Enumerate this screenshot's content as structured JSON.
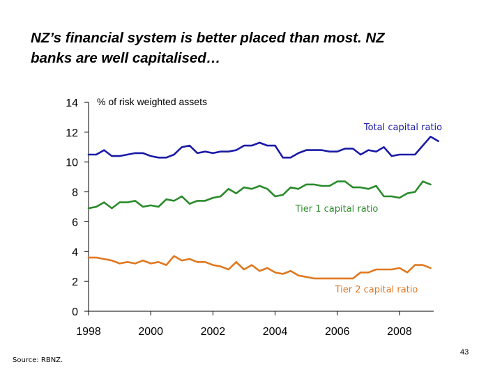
{
  "slide": {
    "title_line1": "NZ’s financial system is better placed than most.  NZ",
    "title_line2": "banks are well capitalised…",
    "source": "Source:  RBNZ.",
    "page_number": "43"
  },
  "chart_data": {
    "type": "line",
    "title": "",
    "ylabel": "% of risk weighted assets",
    "xlabel": "",
    "xlim": [
      1998,
      2009.1
    ],
    "ylim": [
      0,
      14
    ],
    "yticks": [
      0,
      2,
      4,
      6,
      8,
      10,
      12,
      14
    ],
    "xticks": [
      1998,
      2000,
      2002,
      2004,
      2006,
      2008
    ],
    "grid": false,
    "legend": "labels beside series",
    "series": [
      {
        "name": "Total capital ratio",
        "color": "#1a1aa6",
        "points": [
          [
            1998.0,
            10.5
          ],
          [
            1998.25,
            10.5
          ],
          [
            1998.5,
            10.8
          ],
          [
            1998.75,
            10.4
          ],
          [
            1999.0,
            10.4
          ],
          [
            1999.25,
            10.5
          ],
          [
            1999.5,
            10.6
          ],
          [
            1999.75,
            10.6
          ],
          [
            2000.0,
            10.4
          ],
          [
            2000.25,
            10.3
          ],
          [
            2000.5,
            10.3
          ],
          [
            2000.75,
            10.5
          ],
          [
            2001.0,
            11.0
          ],
          [
            2001.25,
            11.1
          ],
          [
            2001.5,
            10.6
          ],
          [
            2001.75,
            10.7
          ],
          [
            2002.0,
            10.6
          ],
          [
            2002.25,
            10.7
          ],
          [
            2002.5,
            10.7
          ],
          [
            2002.75,
            10.8
          ],
          [
            2003.0,
            11.1
          ],
          [
            2003.25,
            11.1
          ],
          [
            2003.5,
            11.3
          ],
          [
            2003.75,
            11.1
          ],
          [
            2004.0,
            11.1
          ],
          [
            2004.25,
            10.3
          ],
          [
            2004.5,
            10.3
          ],
          [
            2004.75,
            10.6
          ],
          [
            2005.0,
            10.8
          ],
          [
            2005.25,
            10.8
          ],
          [
            2005.5,
            10.8
          ],
          [
            2005.75,
            10.7
          ],
          [
            2006.0,
            10.7
          ],
          [
            2006.25,
            10.9
          ],
          [
            2006.5,
            10.9
          ],
          [
            2006.75,
            10.5
          ],
          [
            2007.0,
            10.8
          ],
          [
            2007.25,
            10.7
          ],
          [
            2007.5,
            11.0
          ],
          [
            2007.75,
            10.4
          ],
          [
            2008.0,
            10.5
          ],
          [
            2008.25,
            10.5
          ],
          [
            2008.5,
            10.5
          ],
          [
            2008.75,
            11.1
          ],
          [
            2009.0,
            11.7
          ],
          [
            2009.25,
            11.4
          ]
        ]
      },
      {
        "name": "Tier 1 capital ratio",
        "color": "#2a8a2a",
        "points": [
          [
            1998.0,
            6.9
          ],
          [
            1998.25,
            7.0
          ],
          [
            1998.5,
            7.3
          ],
          [
            1998.75,
            6.9
          ],
          [
            1999.0,
            7.3
          ],
          [
            1999.25,
            7.3
          ],
          [
            1999.5,
            7.4
          ],
          [
            1999.75,
            7.0
          ],
          [
            2000.0,
            7.1
          ],
          [
            2000.25,
            7.0
          ],
          [
            2000.5,
            7.5
          ],
          [
            2000.75,
            7.4
          ],
          [
            2001.0,
            7.7
          ],
          [
            2001.25,
            7.2
          ],
          [
            2001.5,
            7.4
          ],
          [
            2001.75,
            7.4
          ],
          [
            2002.0,
            7.6
          ],
          [
            2002.25,
            7.7
          ],
          [
            2002.5,
            8.2
          ],
          [
            2002.75,
            7.9
          ],
          [
            2003.0,
            8.3
          ],
          [
            2003.25,
            8.2
          ],
          [
            2003.5,
            8.4
          ],
          [
            2003.75,
            8.2
          ],
          [
            2004.0,
            7.7
          ],
          [
            2004.25,
            7.8
          ],
          [
            2004.5,
            8.3
          ],
          [
            2004.75,
            8.2
          ],
          [
            2005.0,
            8.5
          ],
          [
            2005.25,
            8.5
          ],
          [
            2005.5,
            8.4
          ],
          [
            2005.75,
            8.4
          ],
          [
            2006.0,
            8.7
          ],
          [
            2006.25,
            8.7
          ],
          [
            2006.5,
            8.3
          ],
          [
            2006.75,
            8.3
          ],
          [
            2007.0,
            8.2
          ],
          [
            2007.25,
            8.4
          ],
          [
            2007.5,
            7.7
          ],
          [
            2007.75,
            7.7
          ],
          [
            2008.0,
            7.6
          ],
          [
            2008.25,
            7.9
          ],
          [
            2008.5,
            8.0
          ],
          [
            2008.75,
            8.7
          ],
          [
            2009.0,
            8.5
          ]
        ]
      },
      {
        "name": "Tier 2 capital ratio",
        "color": "#e07820",
        "points": [
          [
            1998.0,
            3.6
          ],
          [
            1998.25,
            3.6
          ],
          [
            1998.5,
            3.5
          ],
          [
            1998.75,
            3.4
          ],
          [
            1999.0,
            3.2
          ],
          [
            1999.25,
            3.3
          ],
          [
            1999.5,
            3.2
          ],
          [
            1999.75,
            3.4
          ],
          [
            2000.0,
            3.2
          ],
          [
            2000.25,
            3.3
          ],
          [
            2000.5,
            3.1
          ],
          [
            2000.75,
            3.7
          ],
          [
            2001.0,
            3.4
          ],
          [
            2001.25,
            3.5
          ],
          [
            2001.5,
            3.3
          ],
          [
            2001.75,
            3.3
          ],
          [
            2002.0,
            3.1
          ],
          [
            2002.25,
            3.0
          ],
          [
            2002.5,
            2.8
          ],
          [
            2002.75,
            3.3
          ],
          [
            2003.0,
            2.8
          ],
          [
            2003.25,
            3.1
          ],
          [
            2003.5,
            2.7
          ],
          [
            2003.75,
            2.9
          ],
          [
            2004.0,
            2.6
          ],
          [
            2004.25,
            2.5
          ],
          [
            2004.5,
            2.7
          ],
          [
            2004.75,
            2.4
          ],
          [
            2005.0,
            2.3
          ],
          [
            2005.25,
            2.2
          ],
          [
            2005.5,
            2.2
          ],
          [
            2005.75,
            2.2
          ],
          [
            2006.0,
            2.2
          ],
          [
            2006.25,
            2.2
          ],
          [
            2006.5,
            2.2
          ],
          [
            2006.75,
            2.6
          ],
          [
            2007.0,
            2.6
          ],
          [
            2007.25,
            2.8
          ],
          [
            2007.5,
            2.8
          ],
          [
            2007.75,
            2.8
          ],
          [
            2008.0,
            2.9
          ],
          [
            2008.25,
            2.6
          ],
          [
            2008.5,
            3.1
          ],
          [
            2008.75,
            3.1
          ],
          [
            2009.0,
            2.9
          ]
        ]
      }
    ]
  }
}
